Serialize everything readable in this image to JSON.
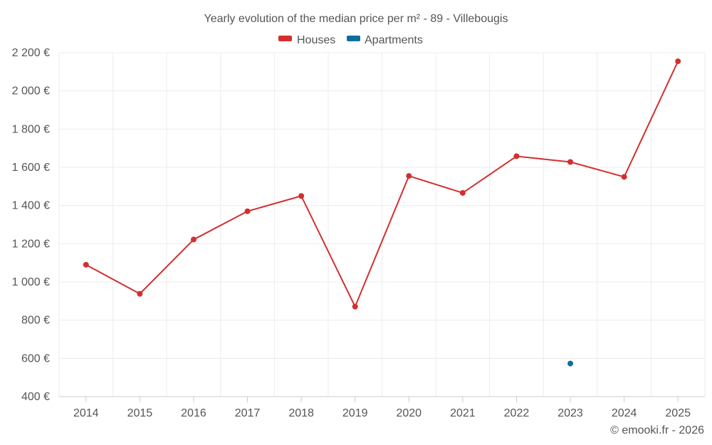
{
  "chart_data": {
    "type": "line",
    "title": "Yearly evolution of the median price per m² - 89 - Villebougis",
    "categories": [
      "2014",
      "2015",
      "2016",
      "2017",
      "2018",
      "2019",
      "2020",
      "2021",
      "2022",
      "2023",
      "2024",
      "2025"
    ],
    "series": [
      {
        "name": "Houses",
        "color": "#d32f2f",
        "values": [
          1090,
          938,
          1222,
          1370,
          1450,
          871,
          1555,
          1466,
          1658,
          1628,
          1550,
          2155
        ]
      },
      {
        "name": "Apartments",
        "color": "#0d6e9c",
        "values": [
          null,
          null,
          null,
          null,
          null,
          null,
          null,
          null,
          null,
          573,
          null,
          null
        ]
      }
    ],
    "ylim": [
      400,
      2200
    ],
    "yticks": [
      400,
      600,
      800,
      1000,
      1200,
      1400,
      1600,
      1800,
      2000,
      2200
    ],
    "ytick_labels": [
      "400 €",
      "600 €",
      "800 €",
      "1 000 €",
      "1 200 €",
      "1 400 €",
      "1 600 €",
      "1 800 €",
      "2 000 €",
      "2 200 €"
    ],
    "xlabel": "",
    "ylabel": "",
    "grid": true,
    "legend_position": "top-center"
  },
  "credit": "© emooki.fr - 2026"
}
